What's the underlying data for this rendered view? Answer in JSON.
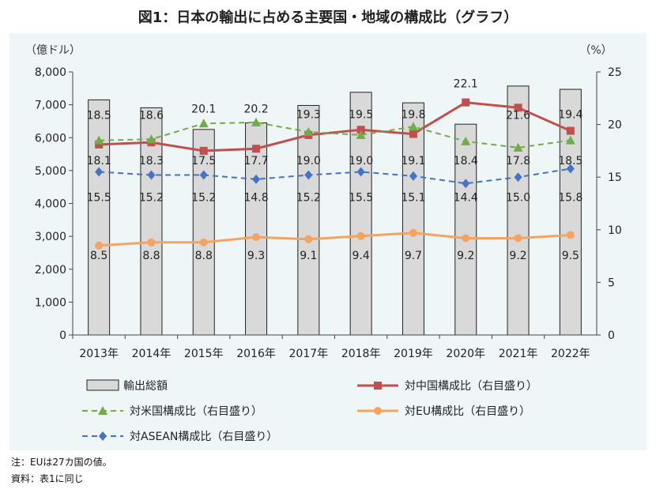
{
  "title": "図1：日本の輸出に占める主要国・地域の構成比（グラフ）",
  "notes": {
    "note": "注：EUは27カ国の値。",
    "source": "資料：表1に同じ"
  },
  "chart_data": {
    "type": "bar",
    "categories": [
      "2013年",
      "2014年",
      "2015年",
      "2016年",
      "2017年",
      "2018年",
      "2019年",
      "2020年",
      "2021年",
      "2022年"
    ],
    "left_axis": {
      "unit": "（億ドル）",
      "ylim": [
        0,
        8000
      ],
      "ticks": [
        "0",
        "1,000",
        "2,000",
        "3,000",
        "4,000",
        "5,000",
        "6,000",
        "7,000",
        "8,000"
      ]
    },
    "right_axis": {
      "unit": "（%）",
      "ylim": [
        0,
        25
      ],
      "ticks": [
        "0",
        "5",
        "10",
        "15",
        "20",
        "25"
      ]
    },
    "bars": {
      "name": "輸出総額",
      "color": "#d9d9d9",
      "values": [
        7150,
        6910,
        6250,
        6450,
        6980,
        7380,
        7060,
        6410,
        7570,
        7470
      ]
    },
    "series": [
      {
        "name": "対中国構成比（右目盛り）",
        "color": "#c0504d",
        "marker": "square",
        "dash": false,
        "values": [
          18.1,
          18.3,
          17.5,
          17.7,
          19.0,
          19.5,
          19.1,
          22.1,
          21.6,
          19.4
        ]
      },
      {
        "name": "対米国構成比（右目盛り）",
        "color": "#70ad47",
        "marker": "triangle",
        "dash": true,
        "values": [
          18.5,
          18.6,
          20.1,
          20.2,
          19.3,
          19.0,
          19.8,
          18.4,
          17.8,
          18.5
        ]
      },
      {
        "name": "対EU構成比（右目盛り）",
        "color": "#f4a460",
        "marker": "circle",
        "dash": false,
        "values": [
          8.5,
          8.8,
          8.8,
          9.3,
          9.1,
          9.4,
          9.7,
          9.2,
          9.2,
          9.5
        ]
      },
      {
        "name": "対ASEAN構成比（右目盛り）",
        "color": "#4472c4",
        "marker": "diamond",
        "dash": true,
        "values": [
          15.5,
          15.2,
          15.2,
          14.8,
          15.2,
          15.5,
          15.1,
          14.4,
          15.0,
          15.8
        ]
      }
    ],
    "data_labels": [
      [
        "18.5",
        "18.6",
        "20.1",
        "20.2",
        "19.3",
        "19.5",
        "19.8",
        "22.1",
        "21.6",
        "19.4"
      ],
      [
        "18.1",
        "18.3",
        "17.5",
        "17.7",
        "19.0",
        "19.0",
        "19.1",
        "18.4",
        "17.8",
        "18.5"
      ],
      [
        "15.5",
        "15.2",
        "15.2",
        "14.8",
        "15.2",
        "15.5",
        "15.1",
        "14.4",
        "15.0",
        "15.8"
      ],
      [
        "8.5",
        "8.8",
        "8.8",
        "9.3",
        "9.1",
        "9.4",
        "9.7",
        "9.2",
        "9.2",
        "9.5"
      ]
    ],
    "legend_position": "bottom",
    "grid": false
  }
}
